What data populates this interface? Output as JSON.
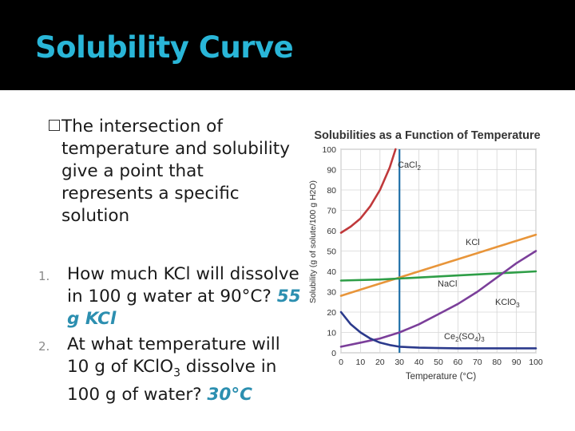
{
  "slide": {
    "title": "Solubility Curve",
    "intro": "The intersection of temperature and solubility give a point that represents a specific solution",
    "questions": [
      {
        "number": "1.",
        "text": "How much KCl will dissolve in 100 g water at 90°C?",
        "answer": "55 g KCl"
      },
      {
        "number": "2.",
        "text_before": "At what temperature will 10 g of KClO",
        "text_sub": "3",
        "text_after": " dissolve in 100 g of water?",
        "answer": "30°C"
      }
    ]
  },
  "colors": {
    "title": "#29b6d8",
    "answer": "#2c8fb0"
  },
  "chart_data": {
    "type": "line",
    "title": "Solubilities as a Function of Temperature",
    "xlabel": "Temperature (°C)",
    "ylabel": "Solubility (g of solute/100 g H2O)",
    "xlim": [
      0,
      100
    ],
    "ylim": [
      0,
      100
    ],
    "xticks": [
      0,
      10,
      20,
      30,
      40,
      50,
      60,
      70,
      80,
      90,
      100
    ],
    "yticks": [
      0,
      10,
      20,
      30,
      40,
      50,
      60,
      70,
      80,
      90,
      100
    ],
    "highlight_x": 30,
    "series": [
      {
        "name": "CaCl2",
        "label_main": "CaCl",
        "label_sub": "2",
        "color": "#c0393b",
        "x": [
          0,
          5,
          10,
          15,
          20,
          25,
          28
        ],
        "y": [
          59,
          62,
          66,
          72,
          80,
          91,
          100
        ]
      },
      {
        "name": "KCl",
        "label_main": "KCl",
        "label_sub": "",
        "color": "#e8953a",
        "x": [
          0,
          10,
          20,
          30,
          40,
          50,
          60,
          70,
          80,
          90,
          100
        ],
        "y": [
          28,
          31,
          34,
          37,
          40,
          43,
          46,
          49,
          52,
          55,
          58
        ]
      },
      {
        "name": "NaCl",
        "label_main": "NaCl",
        "label_sub": "",
        "color": "#2e9e47",
        "x": [
          0,
          20,
          40,
          60,
          80,
          100
        ],
        "y": [
          35.5,
          36,
          37,
          38,
          39,
          40
        ]
      },
      {
        "name": "KClO3",
        "label_main": "KClO",
        "label_sub": "3",
        "color": "#7b3f9a",
        "x": [
          0,
          10,
          20,
          30,
          40,
          50,
          60,
          70,
          80,
          90,
          100
        ],
        "y": [
          3,
          5,
          7,
          10,
          14,
          19,
          24,
          30,
          37,
          44,
          50
        ]
      },
      {
        "name": "Ce2(SO4)3",
        "label_main": "Ce",
        "label_sub": "2",
        "label_mid": "(SO",
        "label_sub2": "4",
        "label_end": ")",
        "label_sub3": "3",
        "color": "#2b3a8c",
        "x": [
          0,
          5,
          10,
          15,
          20,
          25,
          30,
          40,
          50,
          60,
          70,
          80,
          90,
          100
        ],
        "y": [
          20,
          14,
          10,
          7,
          5,
          3.8,
          3,
          2.5,
          2.3,
          2.2,
          2.2,
          2.2,
          2.2,
          2.2
        ]
      }
    ]
  }
}
